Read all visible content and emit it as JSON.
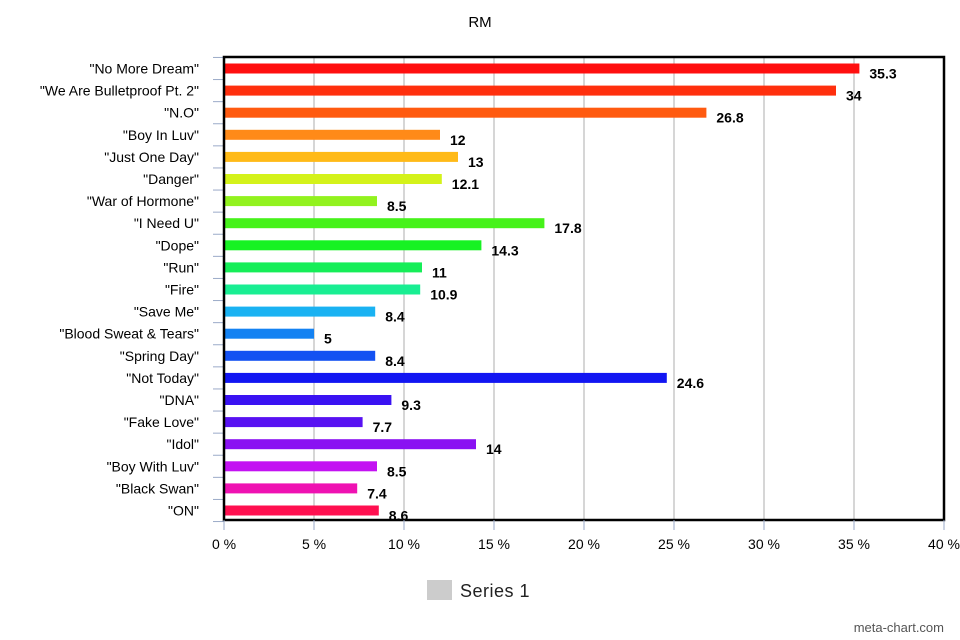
{
  "chart_data": {
    "type": "bar",
    "orientation": "horizontal",
    "title": "RM",
    "categories": [
      "\"No More Dream\"",
      "\"We Are Bulletproof Pt. 2\"",
      "\"N.O\"",
      "\"Boy In Luv\"",
      "\"Just One Day\"",
      "\"Danger\"",
      "\"War of Hormone\"",
      "\"I Need U\"",
      "\"Dope\"",
      "\"Run\"",
      "\"Fire\"",
      "\"Save Me\"",
      "\"Blood Sweat & Tears\"",
      "\"Spring Day\"",
      "\"Not Today\"",
      "\"DNA\"",
      "\"Fake Love\"",
      "\"Idol\"",
      "\"Boy With Luv\"",
      "\"Black Swan\"",
      "\"ON\""
    ],
    "values": [
      35.3,
      34,
      26.8,
      12,
      13,
      12.1,
      8.5,
      17.8,
      14.3,
      11,
      10.9,
      8.4,
      5,
      8.4,
      24.6,
      9.3,
      7.7,
      14,
      8.5,
      7.4,
      8.6
    ],
    "value_labels": [
      "35.3",
      "34",
      "26.8",
      "12",
      "13",
      "12.1",
      "8.5",
      "17.8",
      "14.3",
      "11",
      "10.9",
      "8.4",
      "5",
      "8.4",
      "24.6",
      "9.3",
      "7.7",
      "14",
      "8.5",
      "7.4",
      "8.6"
    ],
    "colors": [
      "#ff0f0f",
      "#ff2f0d",
      "#ff5a10",
      "#ff8a18",
      "#ffba18",
      "#d4f21a",
      "#92f21e",
      "#46f21a",
      "#17f223",
      "#16ee58",
      "#19ee92",
      "#1ab2f2",
      "#1482f2",
      "#1351f2",
      "#1216f2",
      "#3a12f2",
      "#5812f2",
      "#8a12f2",
      "#c312f2",
      "#ef12b2",
      "#ff1050"
    ],
    "xlim": [
      0,
      40
    ],
    "x_ticks": [
      0,
      5,
      10,
      15,
      20,
      25,
      30,
      35,
      40
    ],
    "x_tick_labels": [
      "0 %",
      "5 %",
      "10 %",
      "15 %",
      "20 %",
      "25 %",
      "30 %",
      "35 %",
      "40 %"
    ],
    "grid": true,
    "legend": {
      "position": "bottom",
      "entries": [
        {
          "name": "Series 1",
          "color": "#cccccc"
        }
      ]
    }
  },
  "credit": "meta-chart.com"
}
